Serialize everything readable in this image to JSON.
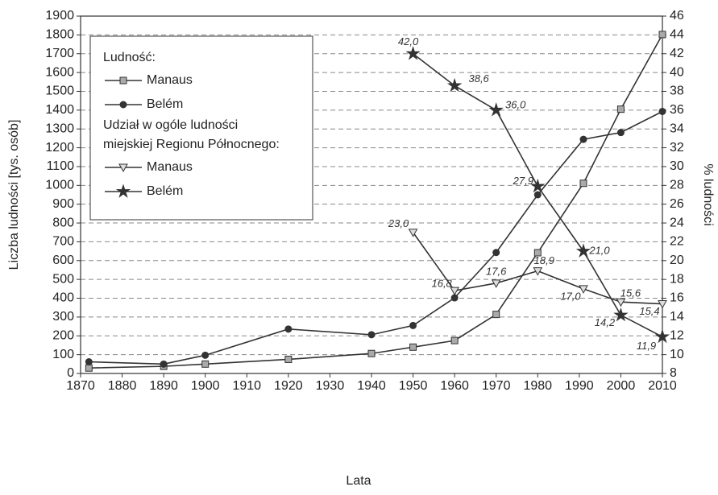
{
  "chart_data": {
    "type": "line",
    "x": [
      1872,
      1890,
      1900,
      1920,
      1940,
      1950,
      1960,
      1970,
      1980,
      1991,
      2000,
      2010
    ],
    "xlim": [
      1870,
      2010
    ],
    "xticks": [
      1870,
      1880,
      1890,
      1900,
      1910,
      1920,
      1930,
      1940,
      1950,
      1960,
      1970,
      1980,
      1990,
      2000,
      2010
    ],
    "ylim": [
      0,
      1900
    ],
    "yticks": [
      0,
      100,
      200,
      300,
      400,
      500,
      600,
      700,
      800,
      900,
      1000,
      1100,
      1200,
      1300,
      1400,
      1500,
      1600,
      1700,
      1800,
      1900
    ],
    "y2lim": [
      8,
      46
    ],
    "y2ticks": [
      8,
      10,
      12,
      14,
      16,
      18,
      20,
      22,
      24,
      26,
      28,
      30,
      32,
      34,
      36,
      38,
      40,
      42,
      44,
      46
    ],
    "grid": true,
    "xlabel": "Lata",
    "ylabel": "Liczba ludności [tys. osób]",
    "y2label": "% ludności",
    "legend_titles": [
      [
        "Ludność:"
      ],
      [
        "Udział w ogóle ludności",
        "miejskiej Regionu Północnego:"
      ]
    ],
    "legend": "upper left",
    "series": [
      {
        "name": "Manaus",
        "color": "#333333",
        "marker": "square",
        "values": [
          29,
          38,
          50,
          75,
          106,
          140,
          175,
          314,
          642,
          1011,
          1405,
          1802
        ]
      },
      {
        "name": "Belém",
        "color": "#333333",
        "marker": "circle",
        "values": [
          62,
          50,
          97,
          236,
          206,
          255,
          402,
          643,
          950,
          1245,
          1281,
          1393
        ]
      },
      {
        "name": "Manaus",
        "color": "#333333",
        "marker": "triangle-down",
        "axis": "y2",
        "values": [
          null,
          null,
          null,
          null,
          null,
          23.0,
          16.8,
          17.6,
          18.9,
          17.0,
          15.6,
          15.4
        ],
        "value_labels": [
          null,
          null,
          null,
          null,
          null,
          "23,0",
          "16,8",
          "17,6",
          "18,9",
          "17,0",
          "15,6",
          "15,4"
        ]
      },
      {
        "name": "Belém",
        "color": "#333333",
        "marker": "star",
        "axis": "y2",
        "values": [
          null,
          null,
          null,
          null,
          null,
          42.0,
          38.6,
          36.0,
          27.9,
          21.0,
          14.2,
          11.9
        ],
        "value_labels": [
          null,
          null,
          null,
          null,
          null,
          "42,0",
          "38,6",
          "36,0",
          "27,9",
          "21,0",
          "14,2",
          "11,9"
        ]
      }
    ]
  }
}
